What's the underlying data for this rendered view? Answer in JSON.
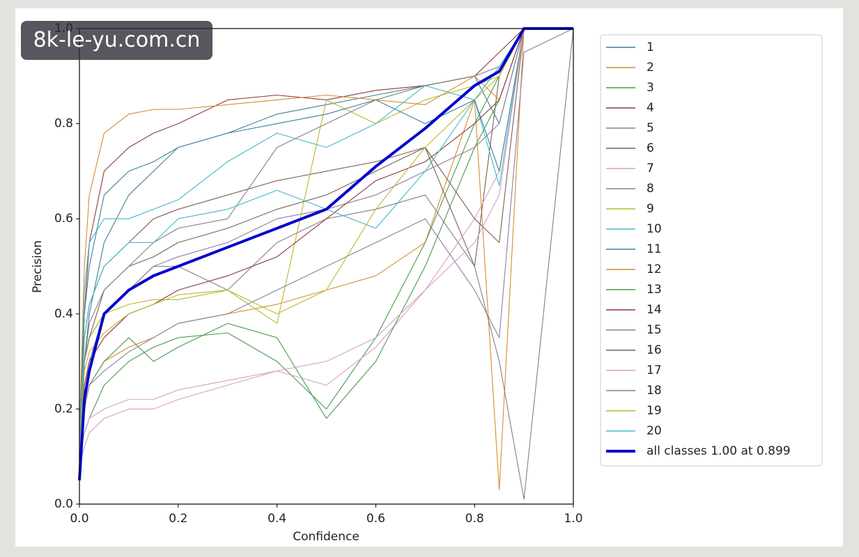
{
  "watermark": "8k-le-yu.com.cn",
  "chart_data": {
    "type": "line",
    "x_label": "Confidence",
    "y_label": "Precision",
    "xlim": [
      0,
      1
    ],
    "ylim": [
      0,
      1
    ],
    "xticks": [
      {
        "value": 0,
        "label": "0.0"
      },
      0.2,
      0.4,
      0.6,
      0.8,
      {
        "value": 1,
        "label": "1.0"
      }
    ],
    "yticks": [
      {
        "value": 0,
        "label": "0.0"
      },
      0.2,
      0.4,
      0.6,
      0.8,
      {
        "value": 1,
        "label": "1.0"
      }
    ],
    "x": [
      0,
      0.01,
      0.02,
      0.05,
      0.1,
      0.15,
      0.2,
      0.3,
      0.4,
      0.5,
      0.6,
      0.7,
      0.8,
      0.85,
      0.9,
      1.0
    ],
    "series": [
      {
        "name": "1",
        "color": "#3e7f9a",
        "values": [
          0.1,
          0.3,
          0.4,
          0.55,
          0.65,
          0.7,
          0.75,
          0.78,
          0.82,
          0.84,
          0.86,
          0.88,
          0.9,
          0.8,
          1,
          1
        ]
      },
      {
        "name": "2",
        "color": "#d98a2b",
        "values": [
          0.1,
          0.2,
          0.25,
          0.3,
          0.33,
          0.35,
          0.38,
          0.4,
          0.42,
          0.45,
          0.48,
          0.55,
          0.85,
          0.03,
          1,
          1
        ]
      },
      {
        "name": "3",
        "color": "#4a9a4a",
        "values": [
          0.1,
          0.15,
          0.18,
          0.25,
          0.3,
          0.33,
          0.35,
          0.36,
          0.3,
          0.2,
          0.35,
          0.55,
          0.8,
          0.9,
          1,
          1
        ]
      },
      {
        "name": "4",
        "color": "#8b3a3a",
        "values": [
          0.15,
          0.4,
          0.55,
          0.7,
          0.75,
          0.78,
          0.8,
          0.85,
          0.86,
          0.85,
          0.87,
          0.88,
          0.9,
          0.95,
          1,
          1
        ]
      },
      {
        "name": "5",
        "color": "#8a7fa0",
        "values": [
          0.1,
          0.3,
          0.35,
          0.4,
          0.45,
          0.5,
          0.52,
          0.55,
          0.6,
          0.62,
          0.65,
          0.7,
          0.75,
          0.8,
          1,
          1
        ]
      },
      {
        "name": "6",
        "color": "#7a6050",
        "values": [
          0.1,
          0.35,
          0.42,
          0.5,
          0.55,
          0.6,
          0.62,
          0.65,
          0.68,
          0.7,
          0.72,
          0.75,
          0.5,
          0.9,
          1,
          1
        ]
      },
      {
        "name": "7",
        "color": "#d4a0c0",
        "values": [
          0.08,
          0.12,
          0.15,
          0.18,
          0.2,
          0.2,
          0.22,
          0.25,
          0.28,
          0.25,
          0.33,
          0.45,
          0.6,
          0.7,
          1,
          1
        ]
      },
      {
        "name": "8",
        "color": "#808080",
        "values": [
          0.1,
          0.25,
          0.3,
          0.4,
          0.45,
          0.5,
          0.5,
          0.45,
          0.55,
          0.6,
          0.62,
          0.65,
          0.5,
          0.3,
          0.01,
          1
        ]
      },
      {
        "name": "9",
        "color": "#b8b830",
        "values": [
          0.12,
          0.3,
          0.35,
          0.4,
          0.42,
          0.43,
          0.43,
          0.45,
          0.38,
          0.85,
          0.8,
          0.85,
          0.88,
          0.9,
          1,
          1
        ]
      },
      {
        "name": "10",
        "color": "#40b8c8",
        "values": [
          0.15,
          0.45,
          0.55,
          0.6,
          0.6,
          0.62,
          0.64,
          0.72,
          0.78,
          0.75,
          0.8,
          0.88,
          0.85,
          0.67,
          1,
          1
        ]
      },
      {
        "name": "11",
        "color": "#3e7f9a",
        "values": [
          0.1,
          0.4,
          0.5,
          0.65,
          0.7,
          0.72,
          0.75,
          0.78,
          0.8,
          0.82,
          0.85,
          0.8,
          0.85,
          0.7,
          1,
          1
        ]
      },
      {
        "name": "12",
        "color": "#d98a2b",
        "values": [
          0.15,
          0.5,
          0.65,
          0.78,
          0.82,
          0.83,
          0.83,
          0.84,
          0.85,
          0.86,
          0.85,
          0.84,
          0.9,
          0.85,
          1,
          1
        ]
      },
      {
        "name": "13",
        "color": "#4a9a4a",
        "values": [
          0.1,
          0.2,
          0.25,
          0.3,
          0.35,
          0.3,
          0.33,
          0.38,
          0.35,
          0.18,
          0.3,
          0.5,
          0.75,
          0.85,
          1,
          1
        ]
      },
      {
        "name": "14",
        "color": "#8b3a3a",
        "values": [
          0.12,
          0.25,
          0.3,
          0.35,
          0.4,
          0.42,
          0.45,
          0.48,
          0.52,
          0.6,
          0.68,
          0.72,
          0.8,
          0.85,
          1,
          1
        ]
      },
      {
        "name": "15",
        "color": "#8a7fa0",
        "values": [
          0.1,
          0.2,
          0.25,
          0.28,
          0.32,
          0.35,
          0.38,
          0.4,
          0.45,
          0.5,
          0.55,
          0.6,
          0.45,
          0.35,
          0.95,
          1
        ]
      },
      {
        "name": "16",
        "color": "#7a6050",
        "values": [
          0.1,
          0.3,
          0.35,
          0.45,
          0.5,
          0.52,
          0.55,
          0.58,
          0.62,
          0.65,
          0.7,
          0.75,
          0.6,
          0.55,
          1,
          1
        ]
      },
      {
        "name": "17",
        "color": "#d4a0c0",
        "values": [
          0.1,
          0.15,
          0.18,
          0.2,
          0.22,
          0.22,
          0.24,
          0.26,
          0.28,
          0.3,
          0.35,
          0.45,
          0.55,
          0.65,
          1,
          1
        ]
      },
      {
        "name": "18",
        "color": "#808080",
        "values": [
          0.1,
          0.3,
          0.38,
          0.45,
          0.5,
          0.55,
          0.58,
          0.6,
          0.75,
          0.8,
          0.85,
          0.88,
          0.9,
          0.92,
          1,
          1
        ]
      },
      {
        "name": "19",
        "color": "#b8b830",
        "values": [
          0.1,
          0.28,
          0.32,
          0.36,
          0.4,
          0.42,
          0.44,
          0.45,
          0.4,
          0.45,
          0.62,
          0.75,
          0.85,
          0.9,
          1,
          1
        ]
      },
      {
        "name": "20",
        "color": "#40b8c8",
        "values": [
          0.12,
          0.35,
          0.42,
          0.5,
          0.55,
          0.55,
          0.6,
          0.62,
          0.66,
          0.62,
          0.58,
          0.7,
          0.85,
          0.92,
          1,
          1
        ]
      },
      {
        "name": "all classes 1.00 at 0.899",
        "color": "#0000cd",
        "width": 4,
        "values": [
          0.05,
          0.22,
          0.28,
          0.4,
          0.45,
          0.48,
          0.5,
          0.54,
          0.58,
          0.62,
          0.71,
          0.79,
          0.88,
          0.91,
          1,
          1
        ]
      }
    ]
  }
}
